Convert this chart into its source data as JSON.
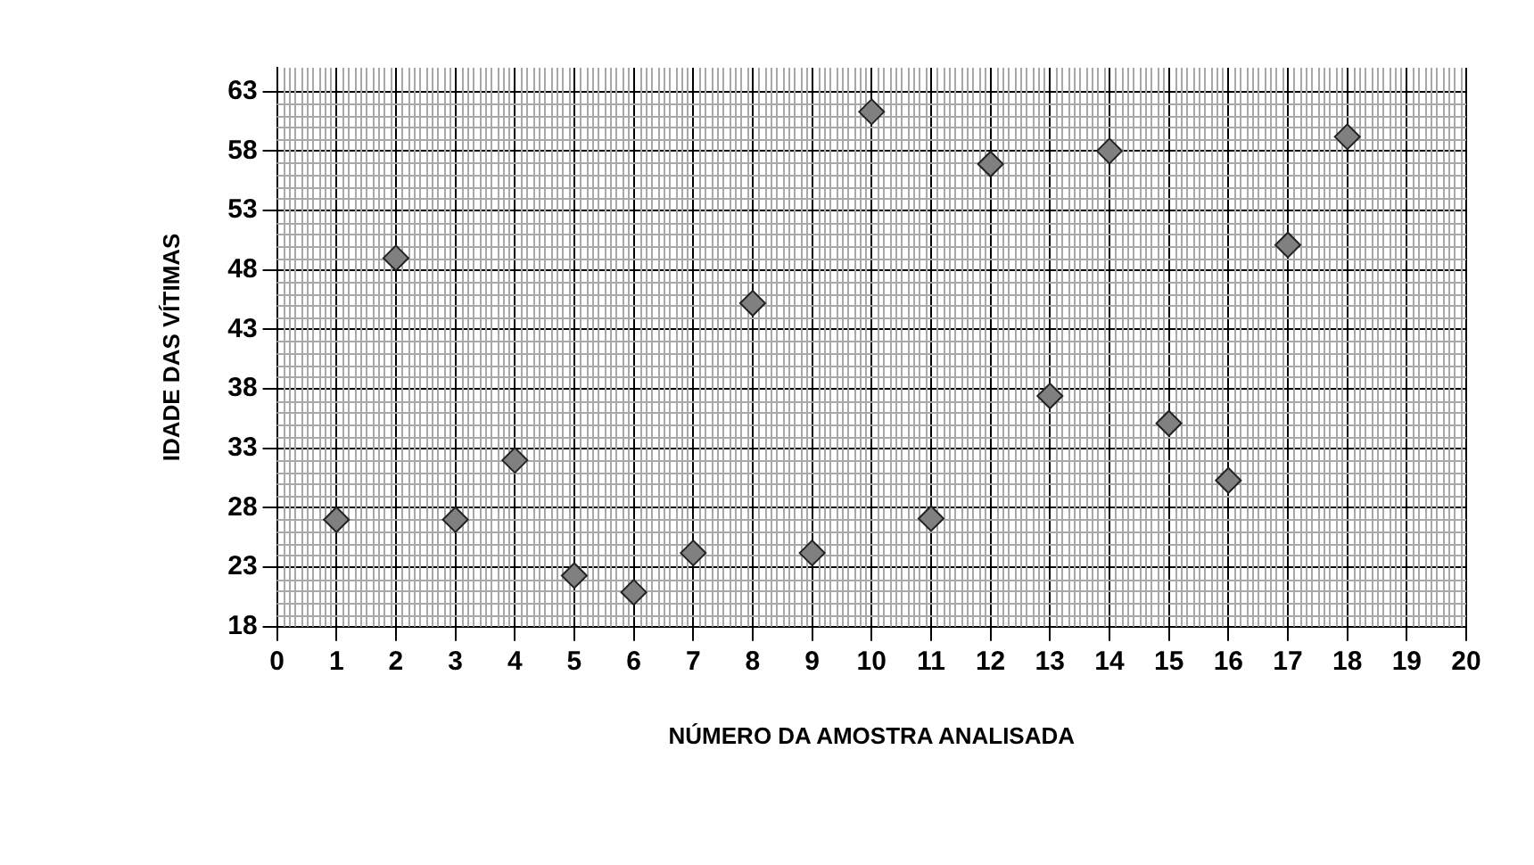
{
  "chart_data": {
    "type": "scatter",
    "xlabel": "NÚMERO DA AMOSTRA ANALISADA",
    "ylabel": "IDADE DAS VÍTIMAS",
    "x": [
      1,
      2,
      3,
      4,
      5,
      6,
      7,
      8,
      9,
      10,
      11,
      12,
      13,
      14,
      15,
      16,
      17,
      18
    ],
    "series": [
      {
        "color": "#808080",
        "values": [
          27,
          49,
          27,
          32,
          22.3,
          20.9,
          24.2,
          45.2,
          24.2,
          61.3,
          27.1,
          56.9,
          37.4,
          58,
          35.1,
          30.3,
          50.1,
          59.2
        ]
      }
    ],
    "xlim": [
      0,
      20
    ],
    "xticks": [
      0,
      1,
      2,
      3,
      4,
      5,
      6,
      7,
      8,
      9,
      10,
      11,
      12,
      13,
      14,
      15,
      16,
      17,
      18,
      19,
      20
    ],
    "ylim": [
      18,
      65
    ],
    "yticks": [
      18,
      23,
      28,
      33,
      38,
      43,
      48,
      53,
      58,
      63
    ],
    "grid": true,
    "marker": "diamond",
    "legend": false
  }
}
